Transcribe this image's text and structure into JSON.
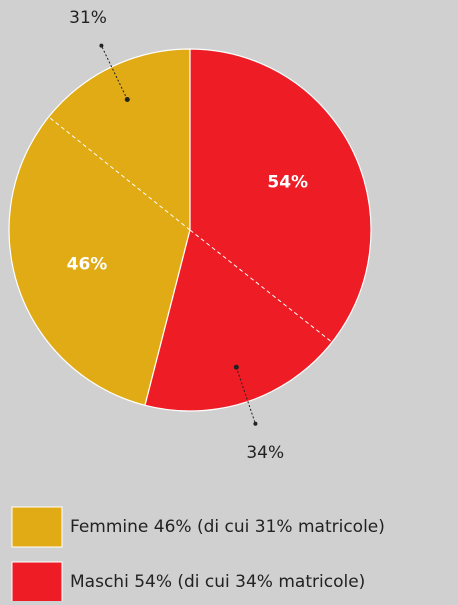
{
  "chart_data": {
    "type": "pie",
    "categories": [
      "Femmine 46% (di cui 31% matricole)",
      "Maschi 54% (di cui 34% matricole)"
    ],
    "values": [
      46,
      54
    ],
    "value_labels": [
      "46%",
      "54%"
    ],
    "colors": [
      "#e0ab14",
      "#ee1c25"
    ],
    "sub_values": [
      31,
      34
    ],
    "sub_value_labels": [
      "31%",
      "34%"
    ]
  }
}
